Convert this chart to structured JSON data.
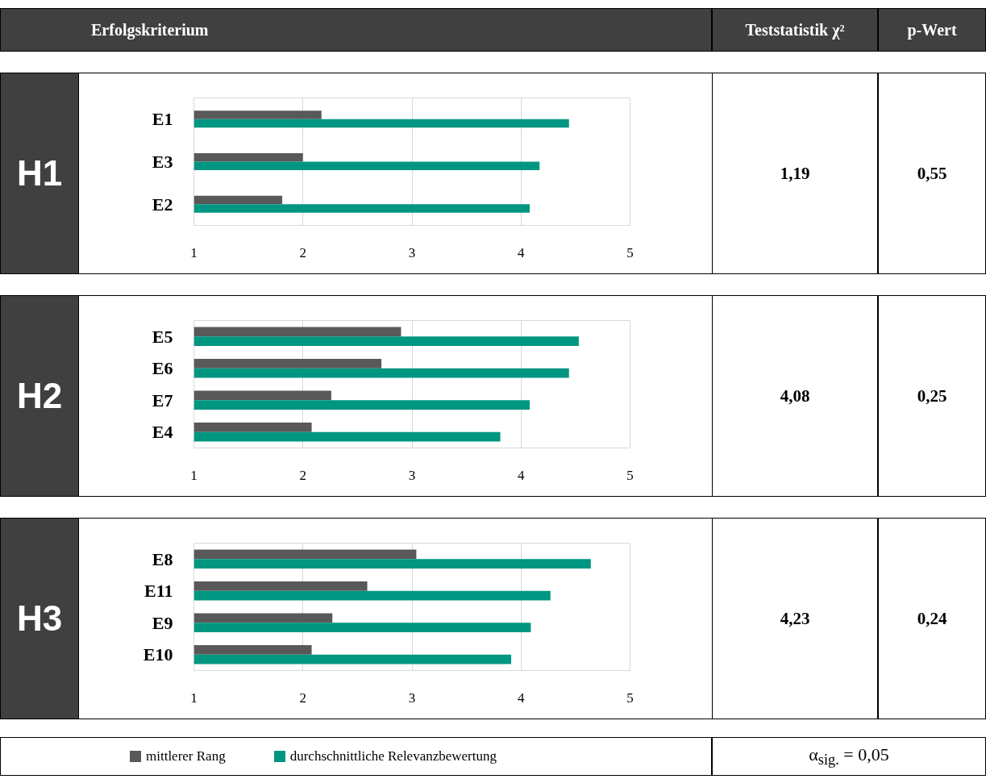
{
  "chart_data": [
    {
      "type": "other",
      "annotations": [
        "Erfolgskriterium",
        "Teststatistik χ²",
        "p-Wert",
        "α$_{sig.}$ = 0,05"
      ]
    },
    {
      "type": "bar",
      "orientation": "horizontal",
      "title": "H1",
      "categories": [
        "E1",
        "E3",
        "E2"
      ],
      "xlim": [
        1,
        5
      ],
      "xticks": [
        1,
        2,
        3,
        4,
        5
      ],
      "grid": "x",
      "annotations": [
        "1,19",
        "0,55"
      ],
      "series": [
        {
          "color": "#595959",
          "values": [
            2.17,
            2.0,
            1.81
          ]
        },
        {
          "color": "#009681",
          "values": [
            4.44,
            4.17,
            4.08
          ]
        }
      ]
    },
    {
      "type": "bar",
      "orientation": "horizontal",
      "title": "H2",
      "categories": [
        "E5",
        "E6",
        "E7",
        "E4"
      ],
      "xlim": [
        1,
        5
      ],
      "xticks": [
        1,
        2,
        3,
        4,
        5
      ],
      "grid": "x",
      "annotations": [
        "4,08",
        "0,25"
      ],
      "series": [
        {
          "color": "#595959",
          "values": [
            2.9,
            2.72,
            2.26,
            2.08
          ]
        },
        {
          "color": "#009681",
          "values": [
            4.53,
            4.44,
            4.08,
            3.81
          ]
        }
      ]
    },
    {
      "type": "bar",
      "orientation": "horizontal",
      "title": "H3",
      "categories": [
        "E8",
        "E11",
        "E9",
        "E10"
      ],
      "xlim": [
        1,
        5
      ],
      "xticks": [
        1,
        2,
        3,
        4,
        5
      ],
      "grid": "x",
      "legend": "bottom",
      "annotations": [
        "4,23",
        "0,24"
      ],
      "series": [
        {
          "name": "mittlerer Rang",
          "color": "#595959",
          "values": [
            3.04,
            2.59,
            2.27,
            2.08
          ]
        },
        {
          "name": "durchschnittliche Relevanzbewertung",
          "color": "#009681",
          "values": [
            4.64,
            4.27,
            4.09,
            3.91
          ]
        }
      ]
    }
  ]
}
